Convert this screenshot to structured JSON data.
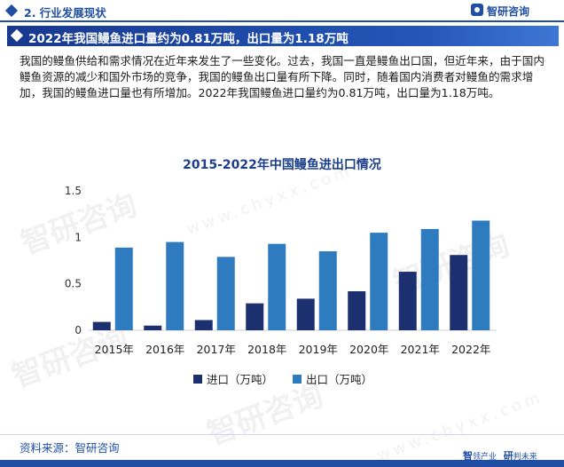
{
  "header": {
    "section_title": "2. 行业发展现状",
    "brand": "智研咨询"
  },
  "banner": {
    "title": "2022年我国鳗鱼进口量约为0.81万吨，出口量为1.18万吨"
  },
  "body_text": "我国的鳗鱼供给和需求情况在近年来发生了一些变化。过去，我国一直是鳗鱼出口国，但近年来，由于国内鳗鱼资源的减少和国外市场的竞争，我国的鳗鱼出口量有所下降。同时，随着国内消费者对鳗鱼的需求增加，我国的鳗鱼进口量也有所增加。2022年我国鳗鱼进口量约为0.81万吨，出口量为1.18万吨。",
  "watermark": {
    "text": "智研咨询",
    "url": "www.chyxx.com"
  },
  "chart_data": {
    "type": "bar",
    "title": "2015-2022年中国鳗鱼进出口情况",
    "categories": [
      "2015年",
      "2016年",
      "2017年",
      "2018年",
      "2019年",
      "2020年",
      "2021年",
      "2022年"
    ],
    "series": [
      {
        "name": "进口（万吨）",
        "color": "#1c2f6e",
        "values": [
          0.09,
          0.05,
          0.11,
          0.29,
          0.34,
          0.42,
          0.63,
          0.81
        ]
      },
      {
        "name": "出口（万吨）",
        "color": "#2e7cbf",
        "values": [
          0.89,
          0.95,
          0.79,
          0.93,
          0.85,
          1.05,
          1.09,
          1.18
        ]
      }
    ],
    "yticks": [
      "0",
      "0.5",
      "1",
      "1.5"
    ],
    "ylim": [
      0,
      1.5
    ],
    "xlabel": "",
    "ylabel": "",
    "grid": false,
    "legend_position": "bottom"
  },
  "footer": {
    "source": "资料来源：智研咨询",
    "logo_left": "智",
    "logo_left_small": "领产业",
    "logo_right": "研",
    "logo_right_small": "判未来"
  }
}
